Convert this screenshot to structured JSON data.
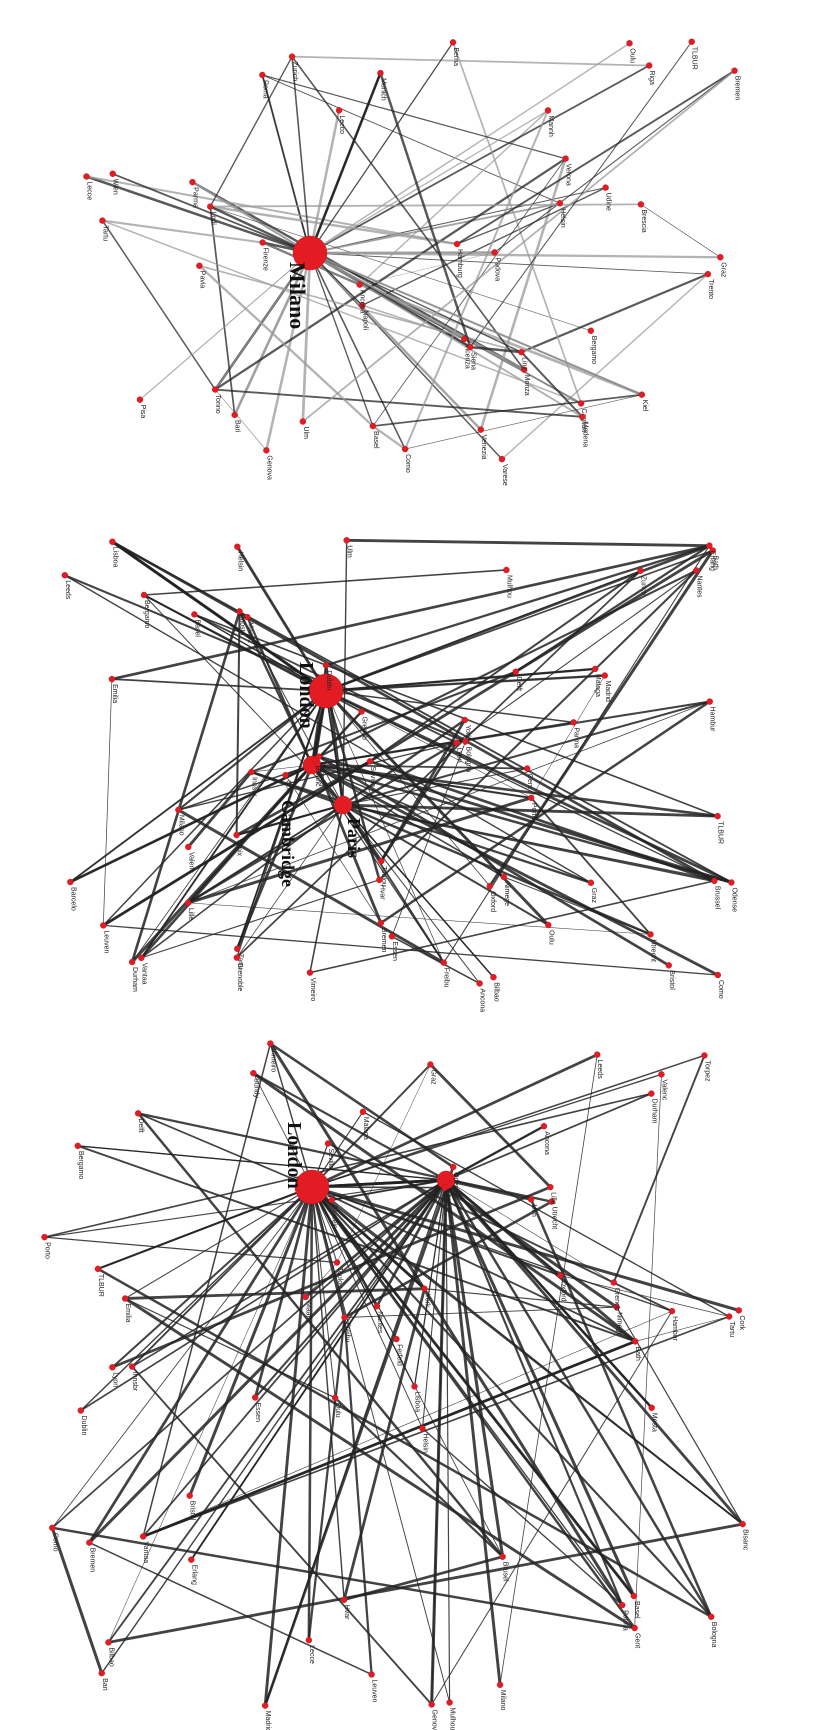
{
  "colors": {
    "node": "#e31b23",
    "edge_light": "#9a9a9a",
    "edge_dark": "#222222",
    "label": "#222222",
    "background": "#ffffff"
  },
  "panels": [
    {
      "id": "panel-top",
      "hub_labels": [
        "Milano"
      ],
      "nodes": [
        {
          "label": "Milano",
          "size": "xl"
        },
        {
          "label": "Varese"
        },
        {
          "label": "Roma"
        },
        {
          "label": "Torino"
        },
        {
          "label": "Parma"
        },
        {
          "label": "Udine"
        },
        {
          "label": "Venezia"
        },
        {
          "label": "Trento"
        },
        {
          "label": "Firenze"
        },
        {
          "label": "Napoli"
        },
        {
          "label": "Bari"
        },
        {
          "label": "Pisa"
        },
        {
          "label": "Lecce"
        },
        {
          "label": "Ancona"
        },
        {
          "label": "Vicenza"
        },
        {
          "label": "Helsin"
        },
        {
          "label": "Oulu"
        },
        {
          "label": "Tartu"
        },
        {
          "label": "Riga"
        },
        {
          "label": "Bergamo"
        },
        {
          "label": "Brescia"
        },
        {
          "label": "Cagliari"
        },
        {
          "label": "Siena"
        },
        {
          "label": "Genova"
        },
        {
          "label": "Modena"
        },
        {
          "label": "Padova"
        },
        {
          "label": "Verona"
        },
        {
          "label": "Pavia"
        },
        {
          "label": "Lodi"
        },
        {
          "label": "Como"
        },
        {
          "label": "Lecco"
        },
        {
          "label": "Monza"
        },
        {
          "label": "TLBUR"
        },
        {
          "label": "Mannh"
        },
        {
          "label": "Ulm"
        },
        {
          "label": "Zurich"
        },
        {
          "label": "Basel"
        },
        {
          "label": "Berna"
        },
        {
          "label": "Wien"
        },
        {
          "label": "Graz"
        },
        {
          "label": "Linz"
        },
        {
          "label": "Munich"
        },
        {
          "label": "Hamburg"
        },
        {
          "label": "Bremen"
        },
        {
          "label": "Kiel"
        }
      ]
    },
    {
      "id": "panel-middle",
      "hub_labels": [
        "London",
        "Cambridge",
        "Paris"
      ],
      "nodes": [
        {
          "label": "London",
          "size": "xl"
        },
        {
          "label": "Cambridge",
          "size": "l"
        },
        {
          "label": "Paris",
          "size": "l"
        },
        {
          "label": "Vimeiro"
        },
        {
          "label": "Ancona"
        },
        {
          "label": "Tartu"
        },
        {
          "label": "Oulu"
        },
        {
          "label": "Helsin"
        },
        {
          "label": "Bergamo"
        },
        {
          "label": "Innsbr"
        },
        {
          "label": "Bristol"
        },
        {
          "label": "Ulm"
        },
        {
          "label": "Dublin"
        },
        {
          "label": "Zurich"
        },
        {
          "label": "Essen"
        },
        {
          "label": "Genova"
        },
        {
          "label": "Hvar"
        },
        {
          "label": "Mulhou"
        },
        {
          "label": "Lyon"
        },
        {
          "label": "Emilia"
        },
        {
          "label": "Grenoble"
        },
        {
          "label": "Cork"
        },
        {
          "label": "Leeds"
        },
        {
          "label": "Oxford"
        },
        {
          "label": "Bath"
        },
        {
          "label": "York"
        },
        {
          "label": "Durham"
        },
        {
          "label": "Madrid"
        },
        {
          "label": "Milano"
        },
        {
          "label": "Barcelo"
        },
        {
          "label": "Valenc"
        },
        {
          "label": "Lisboa"
        },
        {
          "label": "Porto"
        },
        {
          "label": "Sevilla"
        },
        {
          "label": "Bilbao"
        },
        {
          "label": "Toulou"
        },
        {
          "label": "Nantes"
        },
        {
          "label": "Lille"
        },
        {
          "label": "Gent"
        },
        {
          "label": "Brussel"
        },
        {
          "label": "Leuven"
        },
        {
          "label": "Delft"
        },
        {
          "label": "Utrecht"
        },
        {
          "label": "Bologna"
        },
        {
          "label": "Parma"
        },
        {
          "label": "Odense"
        },
        {
          "label": "Vantaa"
        },
        {
          "label": "Maanz"
        },
        {
          "label": "Nimege"
        },
        {
          "label": "TLBUR"
        },
        {
          "label": "Freibu"
        },
        {
          "label": "Basel"
        },
        {
          "label": "Bremen"
        },
        {
          "label": "Erlang"
        },
        {
          "label": "Hambur"
        },
        {
          "label": "Como"
        },
        {
          "label": "Graz"
        },
        {
          "label": "Ernix"
        },
        {
          "label": "Malaga"
        },
        {
          "label": "Bisanc"
        },
        {
          "label": "Grenob"
        },
        {
          "label": "Mosta"
        }
      ]
    },
    {
      "id": "panel-bottom",
      "hub_labels": [
        "London"
      ],
      "nodes": [
        {
          "label": "London",
          "size": "xl"
        },
        {
          "label": "Hasselt",
          "size": "l"
        },
        {
          "label": "Vimeiro"
        },
        {
          "label": "Ancona"
        },
        {
          "label": "Tartu"
        },
        {
          "label": "Oulu"
        },
        {
          "label": "Helsin"
        },
        {
          "label": "Innsbr"
        },
        {
          "label": "Bergamo"
        },
        {
          "label": "Ulm"
        },
        {
          "label": "Dublin"
        },
        {
          "label": "Zurich"
        },
        {
          "label": "Ferfeld"
        },
        {
          "label": "Bari"
        },
        {
          "label": "Sundy"
        },
        {
          "label": "Essen"
        },
        {
          "label": "Genova"
        },
        {
          "label": "Mulhou"
        },
        {
          "label": "Hvar"
        },
        {
          "label": "Leeds"
        },
        {
          "label": "Oxford"
        },
        {
          "label": "Bristol"
        },
        {
          "label": "Emilia"
        },
        {
          "label": "Lyon"
        },
        {
          "label": "Cork"
        },
        {
          "label": "Hambur"
        },
        {
          "label": "Como"
        },
        {
          "label": "TLBUR"
        },
        {
          "label": "Freibu"
        },
        {
          "label": "Nimege"
        },
        {
          "label": "Basel"
        },
        {
          "label": "Bremen"
        },
        {
          "label": "Parma"
        },
        {
          "label": "Odense"
        },
        {
          "label": "Vantaa"
        },
        {
          "label": "Maanz"
        },
        {
          "label": "Brusel"
        },
        {
          "label": "Bisanc"
        },
        {
          "label": "Grenob"
        },
        {
          "label": "Lecce"
        },
        {
          "label": "Torpez"
        },
        {
          "label": "Malaga"
        },
        {
          "label": "Bilbao"
        },
        {
          "label": "Madrid"
        },
        {
          "label": "Milano"
        },
        {
          "label": "Delft"
        },
        {
          "label": "Leuven"
        },
        {
          "label": "Utrecht"
        },
        {
          "label": "Gent"
        },
        {
          "label": "Lille"
        },
        {
          "label": "Porto"
        },
        {
          "label": "Lisboa"
        },
        {
          "label": "Sevilla"
        },
        {
          "label": "Bath"
        },
        {
          "label": "York"
        },
        {
          "label": "Durham"
        },
        {
          "label": "Graz"
        },
        {
          "label": "Erlang"
        },
        {
          "label": "Toulou"
        },
        {
          "label": "Nantes"
        },
        {
          "label": "Valenc"
        },
        {
          "label": "Barcelo"
        },
        {
          "label": "Bologna"
        },
        {
          "label": "Mosta"
        }
      ]
    }
  ]
}
